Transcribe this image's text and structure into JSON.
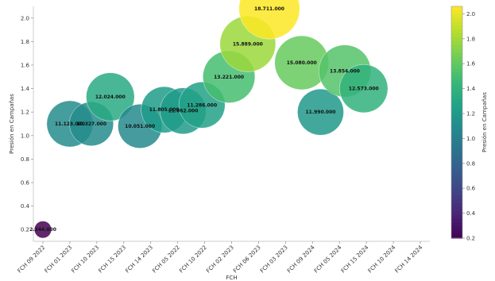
{
  "chart_data": {
    "type": "scatter",
    "title": "",
    "xlabel": "FCH",
    "ylabel": "Presión en Campañas",
    "colorbar_label": "Presión en Campañas",
    "colormap": "viridis",
    "ylim": [
      0.1,
      2.1
    ],
    "yticks": [
      0.2,
      0.4,
      0.6,
      0.8,
      1.0,
      1.2,
      1.4,
      1.6,
      1.8,
      2.0
    ],
    "ytick_labels": [
      "0.2",
      "0.4",
      "0.6",
      "0.8",
      "1.0",
      "1.2",
      "1.4",
      "1.6",
      "1.8",
      "2.0"
    ],
    "colorbar_ticks": [
      0.2,
      0.4,
      0.6,
      0.8,
      1.0,
      1.2,
      1.4,
      1.6,
      1.8,
      2.0
    ],
    "colorbar_tick_labels": [
      "0.2",
      "0.4",
      "0.6",
      "0.8",
      "1.0",
      "1.2",
      "1.4",
      "1.6",
      "1.8",
      "2.0"
    ],
    "colorbar_range": [
      0.2,
      2.06
    ],
    "grid": false,
    "x_categories": [
      "FCH 09 2022",
      "FCH 01 2023",
      "FCH 10 2023",
      "FCH 15 2023",
      "FCH 14 2023",
      "FCH 05 2022",
      "FCH 10 2022",
      "FCH 02 2023",
      "FCH 06 2023",
      "FCH 03 2023",
      "FCH 09 2024",
      "FCH 05 2024",
      "FCH 15 2024",
      "FCH 10 2024",
      "FCH 14 2024"
    ],
    "points": [
      {
        "x": 0.0,
        "y": 0.2,
        "size": 3,
        "label": "2.344.000"
      },
      {
        "x": 1.0,
        "y": 1.1,
        "size": 22,
        "label": "11.123.000"
      },
      {
        "x": 1.8,
        "y": 1.1,
        "size": 20,
        "label": "10.327.000"
      },
      {
        "x": 2.5,
        "y": 1.33,
        "size": 24,
        "label": "12.024.000"
      },
      {
        "x": 3.6,
        "y": 1.08,
        "size": 20,
        "label": "10.051.000"
      },
      {
        "x": 4.5,
        "y": 1.22,
        "size": 22,
        "label": "11.805.000"
      },
      {
        "x": 5.2,
        "y": 1.21,
        "size": 22,
        "label": "11.062.000"
      },
      {
        "x": 5.9,
        "y": 1.26,
        "size": 22,
        "label": "11.286.000"
      },
      {
        "x": 6.9,
        "y": 1.5,
        "size": 28,
        "label": "13.221.000"
      },
      {
        "x": 7.6,
        "y": 1.78,
        "size": 32,
        "label": "15.889.000"
      },
      {
        "x": 8.4,
        "y": 2.08,
        "size": 38,
        "label": "18.711.000"
      },
      {
        "x": 9.6,
        "y": 1.62,
        "size": 30,
        "label": "15.080.000"
      },
      {
        "x": 10.3,
        "y": 1.2,
        "size": 22,
        "label": "11.990.000"
      },
      {
        "x": 11.2,
        "y": 1.55,
        "size": 28,
        "label": "13.854.000"
      },
      {
        "x": 11.9,
        "y": 1.4,
        "size": 24,
        "label": "12.573.000"
      }
    ]
  }
}
